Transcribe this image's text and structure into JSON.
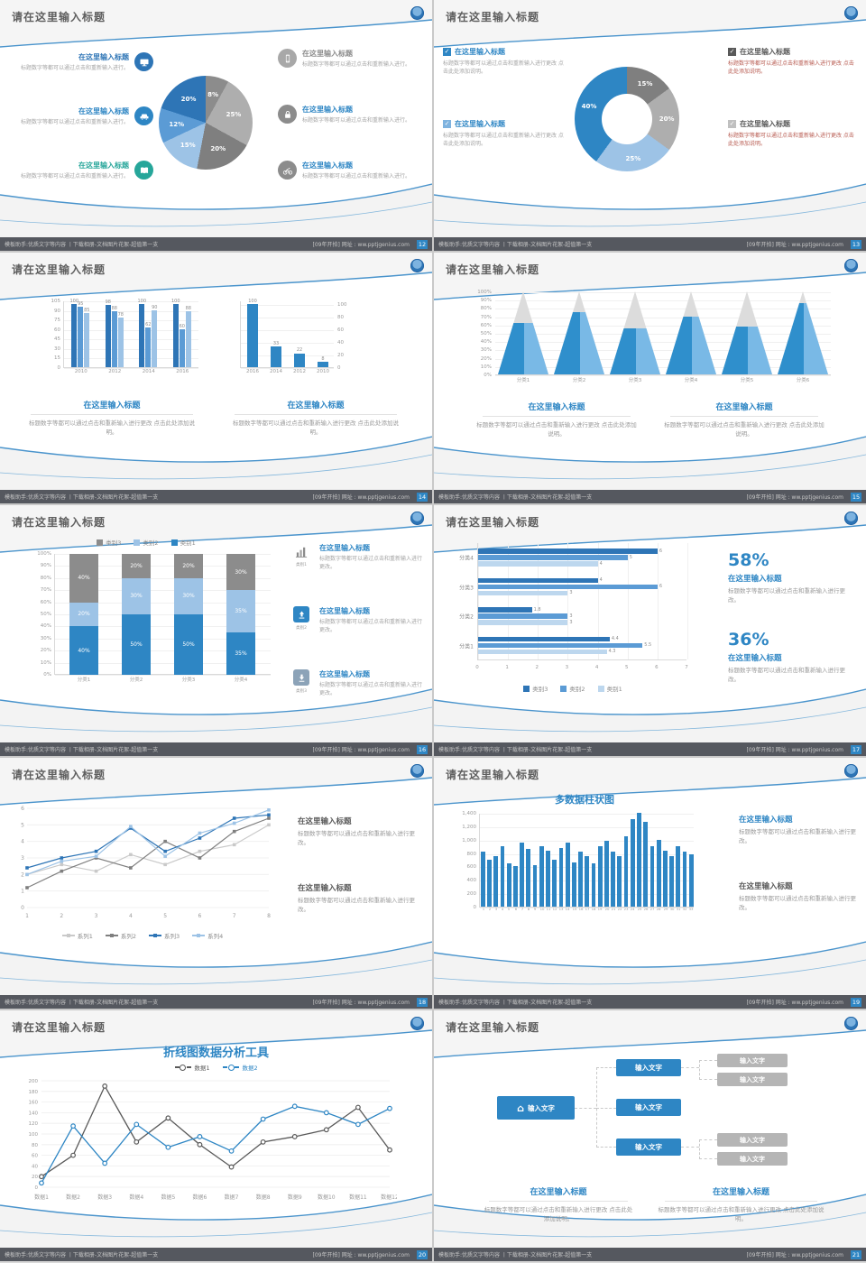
{
  "common": {
    "slide_title": "请在这里输入标题",
    "block_title": "在这里输入标题",
    "body1": "标题数字等都可以通过点击和重新输入进行更改。",
    "body2": "标题数字等都可以通过点击和重新输入进行更改 点击此处添加说明。",
    "body3": "标题数字等都可以通过点击和重新输入进行。",
    "flow_label": "输入文字",
    "footer_left": "模板助手:优质文字等内容 丨下载相册-文档图片花絮-超值第一支",
    "footer_right": "[09年开拍] 网址 : ww.pptjgenius.com"
  },
  "slides": [
    {
      "page": "12"
    },
    {
      "page": "13"
    },
    {
      "page": "14"
    },
    {
      "page": "15"
    },
    {
      "page": "16",
      "icon_captions": [
        "类别1",
        "类别2",
        "类别3"
      ]
    },
    {
      "page": "17",
      "stats": [
        {
          "pct": "58%"
        },
        {
          "pct": "36%"
        }
      ]
    },
    {
      "page": "18"
    },
    {
      "page": "19"
    },
    {
      "page": "20"
    },
    {
      "page": "21"
    }
  ],
  "chart_data": [
    {
      "type": "pie",
      "segments": [
        {
          "label": "8%",
          "value": 8,
          "color": "#8c8c8c"
        },
        {
          "label": "25%",
          "value": 25,
          "color": "#aeaeae"
        },
        {
          "label": "20%",
          "value": 20,
          "color": "#7f7f7f"
        },
        {
          "label": "15%",
          "value": 15,
          "color": "#9dc3e6"
        },
        {
          "label": "12%",
          "value": 12,
          "color": "#5b9bd5"
        },
        {
          "label": "20%",
          "value": 20,
          "color": "#2e75b6"
        }
      ]
    },
    {
      "type": "pie",
      "subtype": "donut",
      "segments": [
        {
          "label": "15%",
          "value": 15,
          "color": "#7f7f7f"
        },
        {
          "label": "20%",
          "value": 20,
          "color": "#aeaeae"
        },
        {
          "label": "25%",
          "value": 25,
          "color": "#9dc3e6"
        },
        {
          "label": "40%",
          "value": 40,
          "color": "#2e86c4"
        }
      ]
    },
    {
      "type": "bar",
      "categories": [
        "2010",
        "2012",
        "2014",
        "2016"
      ],
      "series": [
        {
          "name": "系列1",
          "color": "#2e75b6",
          "values": [
            100,
            98,
            100,
            100
          ]
        },
        {
          "name": "系列2",
          "color": "#5b9bd5",
          "values": [
            95,
            88,
            62,
            60
          ]
        },
        {
          "name": "系列3",
          "color": "#9dc3e6",
          "values": [
            85,
            78,
            90,
            88
          ]
        }
      ],
      "ylim": [
        0,
        105
      ],
      "yticks": [
        0,
        15,
        30,
        45,
        60,
        75,
        90,
        105
      ]
    },
    {
      "type": "bar",
      "categories": [
        "2016",
        "2014",
        "2012",
        "2010"
      ],
      "values": [
        100,
        33,
        22,
        8
      ],
      "color": "#2e86c4",
      "ylim": [
        0,
        105
      ],
      "yticks": [
        0,
        20,
        40,
        60,
        80,
        100
      ]
    },
    {
      "type": "bar",
      "subtype": "pyramid",
      "categories": [
        "分类1",
        "分类2",
        "分类3",
        "分类4",
        "分类5",
        "分类6"
      ],
      "values": [
        62,
        75,
        55,
        70,
        58,
        86
      ],
      "color": "#2f8fcc",
      "color2": "#79b9e6",
      "top_color": "#dcdcdc",
      "ylim": [
        0,
        100
      ]
    },
    {
      "type": "bar",
      "subtype": "stacked",
      "categories": [
        "分类1",
        "分类2",
        "分类3",
        "分类4"
      ],
      "series": [
        {
          "name": "类别1",
          "color": "#2e86c4",
          "values": [
            40,
            50,
            50,
            35
          ]
        },
        {
          "name": "类别2",
          "color": "#9dc3e6",
          "values": [
            20,
            30,
            30,
            35
          ]
        },
        {
          "name": "类别3",
          "color": "#8c8c8c",
          "values": [
            40,
            20,
            20,
            30
          ]
        }
      ],
      "legend": [
        "类别3",
        "类别2",
        "类别1"
      ],
      "ylim": [
        0,
        100
      ]
    },
    {
      "type": "bar",
      "subtype": "horizontal",
      "categories": [
        "分类4",
        "分类3",
        "分类2",
        "分类1"
      ],
      "series": [
        {
          "name": "类别3",
          "color": "#2e75b6",
          "values": [
            6,
            4,
            1.8,
            4.4
          ]
        },
        {
          "name": "类别2",
          "color": "#5b9bd5",
          "values": [
            5,
            6,
            3,
            5.5
          ]
        },
        {
          "name": "类别1",
          "color": "#bdd7ee",
          "values": [
            4,
            3,
            3,
            4.3
          ]
        }
      ],
      "xlim": [
        0,
        7
      ],
      "xticks": [
        0,
        1,
        2,
        3,
        4,
        5,
        6,
        7
      ]
    },
    {
      "type": "line",
      "x": [
        1,
        2,
        3,
        4,
        5,
        6,
        7,
        8
      ],
      "series": [
        {
          "name": "系列1",
          "color": "#c9c9c9",
          "values": [
            2,
            2.6,
            2.2,
            3.2,
            2.6,
            3.4,
            3.8,
            5
          ]
        },
        {
          "name": "系列2",
          "color": "#7f7f7f",
          "values": [
            1.2,
            2.2,
            3,
            2.4,
            4,
            3,
            4.6,
            5.4
          ]
        },
        {
          "name": "系列3",
          "color": "#2e75b6",
          "values": [
            2.4,
            3,
            3.4,
            4.8,
            3.4,
            4.2,
            5.4,
            5.6
          ]
        },
        {
          "name": "系列4",
          "color": "#9dc3e6",
          "values": [
            2,
            2.8,
            3.1,
            4.9,
            3.1,
            4.5,
            5.1,
            5.9
          ]
        }
      ],
      "ylim": [
        0,
        6
      ],
      "yticks": [
        0,
        1,
        2,
        3,
        4,
        5,
        6
      ]
    },
    {
      "type": "bar",
      "subtype": "column",
      "title": "多数据柱状图",
      "color": "#2e86c4",
      "ylim": [
        0,
        1400
      ],
      "yticks": [
        "1,400",
        "1,200",
        "1,000",
        "800",
        "600",
        "400",
        "200",
        "0"
      ],
      "x_labels": [
        "1",
        "2",
        "3",
        "4",
        "5",
        "6",
        "7",
        "8",
        "9",
        "10",
        "11",
        "12",
        "13",
        "14",
        "15",
        "16",
        "17",
        "18",
        "19",
        "20",
        "21",
        "22",
        "23",
        "24",
        "25",
        "26",
        "27",
        "28",
        "29",
        "30",
        "31",
        "32",
        "33"
      ],
      "values": [
        820,
        700,
        760,
        900,
        640,
        600,
        950,
        860,
        620,
        900,
        830,
        700,
        880,
        950,
        660,
        820,
        760,
        640,
        900,
        980,
        820,
        760,
        1050,
        1300,
        1400,
        1260,
        900,
        1000,
        840,
        760,
        900,
        820,
        780
      ]
    },
    {
      "type": "line",
      "title": "折线图数据分析工具",
      "ylim": [
        0,
        200
      ],
      "yticks": [
        0,
        20,
        40,
        60,
        80,
        100,
        120,
        140,
        160,
        180,
        200
      ],
      "x_labels": [
        "数据1",
        "数据2",
        "数据3",
        "数据4",
        "数据5",
        "数据6",
        "数据7",
        "数据8",
        "数据9",
        "数据10",
        "数据11",
        "数据12"
      ],
      "series": [
        {
          "name": "数据1",
          "color": "#595959",
          "values": [
            20,
            60,
            190,
            85,
            130,
            80,
            38,
            85,
            95,
            108,
            150,
            70
          ]
        },
        {
          "name": "数据2",
          "color": "#2e86c4",
          "values": [
            8,
            115,
            45,
            118,
            75,
            95,
            68,
            128,
            152,
            140,
            118,
            148
          ]
        }
      ]
    }
  ]
}
